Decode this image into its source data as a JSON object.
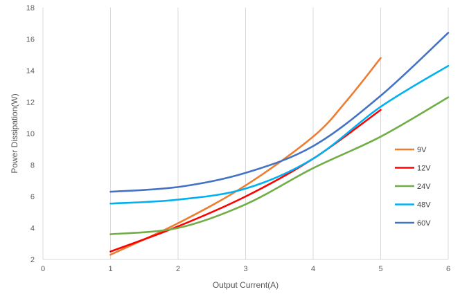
{
  "chart_data": {
    "type": "line",
    "xlabel": "Output Current(A)",
    "ylabel": "Power Dissipation(W)",
    "xlim": [
      0,
      6
    ],
    "ylim": [
      2,
      18
    ],
    "xticks": [
      0,
      1,
      2,
      3,
      4,
      5,
      6
    ],
    "yticks": [
      2,
      4,
      6,
      8,
      10,
      12,
      14,
      16,
      18
    ],
    "grid": "vertical",
    "legend_position": "right",
    "series": [
      {
        "name": "9V",
        "color": "#ed7d31",
        "x": [
          1,
          2,
          3,
          4,
          4.5,
          5
        ],
        "y": [
          2.3,
          4.3,
          6.7,
          9.8,
          12.1,
          14.8
        ]
      },
      {
        "name": "12V",
        "color": "#ff0000",
        "x": [
          1,
          2,
          3,
          4,
          5
        ],
        "y": [
          2.5,
          4.1,
          6.0,
          8.4,
          11.5
        ]
      },
      {
        "name": "24V",
        "color": "#70ad47",
        "x": [
          1,
          2,
          3,
          4,
          5,
          6
        ],
        "y": [
          3.6,
          4.0,
          5.5,
          7.8,
          9.8,
          12.3
        ]
      },
      {
        "name": "48V",
        "color": "#00b0f0",
        "x": [
          1,
          2,
          3,
          4,
          5,
          6
        ],
        "y": [
          5.55,
          5.8,
          6.5,
          8.4,
          11.7,
          14.3
        ]
      },
      {
        "name": "60V",
        "color": "#4472c4",
        "x": [
          1,
          2,
          3,
          4,
          5,
          6
        ],
        "y": [
          6.3,
          6.6,
          7.5,
          9.2,
          12.4,
          16.4
        ]
      }
    ]
  }
}
